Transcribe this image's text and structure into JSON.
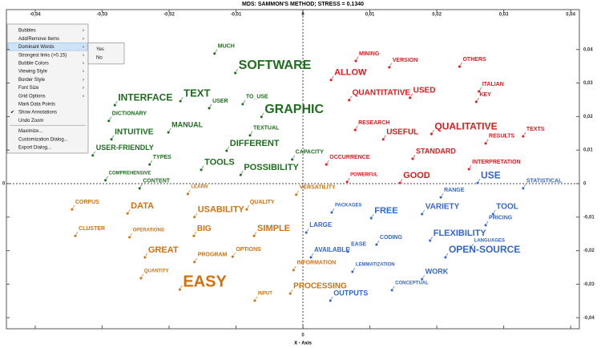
{
  "chart_data": {
    "type": "scatter",
    "title": "MDS: SAMMON'S METHOD; STRESS = 0.1340",
    "x_label": "X - Axis",
    "xlim": [
      -0.0443,
      0.0413
    ],
    "ylim": [
      -0.0433,
      0.0519
    ],
    "xticks": [
      {
        "value": -0.04,
        "label": "-0,04"
      },
      {
        "value": -0.03,
        "label": "-0,03"
      },
      {
        "value": -0.02,
        "label": "-0,02"
      },
      {
        "value": -0.01,
        "label": "-0,01"
      },
      0,
      {
        "value": 0.01,
        "label": "0,01"
      },
      {
        "value": 0.02,
        "label": "0,02"
      },
      {
        "value": 0.03,
        "label": "0,03"
      },
      {
        "value": 0.04,
        "label": "0,04"
      }
    ],
    "yticks": [
      {
        "value": 0.04,
        "label": "0,04"
      },
      {
        "value": 0.03,
        "label": "0,03"
      },
      {
        "value": 0.02,
        "label": "0,02"
      },
      {
        "value": 0.01,
        "label": "0,01"
      },
      0,
      {
        "value": -0.01,
        "label": "-0,01"
      },
      {
        "value": -0.02,
        "label": "-0,02"
      },
      {
        "value": -0.03,
        "label": "-0,03"
      },
      {
        "value": -0.04,
        "label": "-0,04"
      }
    ],
    "series": [
      {
        "color": "#1e6e1e",
        "labels": [
          "MUCH",
          "SOFTWARE",
          "INTERFACE",
          "TEXT",
          "USER",
          "TO_USE",
          "GRAPHIC",
          "DICTIONARY",
          "MANUAL",
          "TEXTUAL",
          "INTUITIVE",
          "DIFFERENT",
          "USER-FRIENDLY",
          "CAPACITY",
          "TYPES",
          "TOOLS",
          "POSSIBILITY",
          "COMPREHENSIVE",
          "CONTENT"
        ],
        "x": [
          -0.0132,
          -0.0101,
          -0.0281,
          -0.0183,
          -0.014,
          -0.009,
          -0.0062,
          -0.029,
          -0.0201,
          -0.0079,
          -0.0286,
          -0.0114,
          -0.0314,
          -0.0016,
          -0.0229,
          -0.0152,
          -0.0093,
          -0.0295,
          -0.0244
        ],
        "y": [
          0.0388,
          0.033,
          0.0234,
          0.0246,
          0.0225,
          0.0237,
          0.0199,
          0.0187,
          0.0153,
          0.0144,
          0.0132,
          0.0098,
          0.0084,
          0.0072,
          0.0057,
          0.0041,
          0.0026,
          0.001,
          -0.0014
        ],
        "sizes": [
          7,
          16,
          12,
          13,
          7,
          7,
          16,
          7,
          9,
          7,
          10,
          11,
          9,
          7,
          7,
          11,
          11,
          6,
          7
        ]
      },
      {
        "color": "#e8161b",
        "labels": [
          "MINING",
          "VERSION",
          "OTHERS",
          "ALLOW",
          "QUANTITATIVE",
          "USED",
          "ITALIAN",
          "KEY",
          "RESEARCH",
          "QUALITATIVE",
          "TEXTS",
          "USEFUL",
          "RESULTS",
          "OCCURRENCE",
          "STANDARD",
          "INTERPRETATION",
          "POWERFUL",
          "GOOD"
        ],
        "x": [
          0.0079,
          0.0129,
          0.0234,
          0.0042,
          0.0069,
          0.016,
          0.0263,
          0.0259,
          0.0078,
          0.0192,
          0.0329,
          0.012,
          0.0273,
          0.0035,
          0.0164,
          0.0248,
          0.0066,
          0.0145
        ],
        "y": [
          0.0366,
          0.0347,
          0.0349,
          0.0309,
          0.0249,
          0.0256,
          0.0275,
          0.0244,
          0.016,
          0.0148,
          0.0141,
          0.0132,
          0.012,
          0.0057,
          0.0074,
          0.0043,
          0.0005,
          0.0002
        ],
        "sizes": [
          7,
          7,
          7,
          11,
          10,
          10,
          7,
          7,
          7,
          12,
          7,
          10,
          7,
          7,
          9,
          7,
          6,
          11
        ]
      },
      {
        "color": "#d4700c",
        "labels": [
          "LEARN",
          "VERSATILITY",
          "QUALITY",
          "CORPUS",
          "DATA",
          "USABILITY",
          "CLUSTER",
          "OPERATIONS",
          "BIG",
          "SIMPLE",
          "GREAT",
          "OPTIONS",
          "PROGRAM",
          "INFORMATION",
          "QUANTITY",
          "EASY",
          "PROCESSING",
          "INPUT"
        ],
        "x": [
          -0.0172,
          -0.001,
          -0.0084,
          -0.0345,
          -0.0262,
          -0.0162,
          -0.034,
          -0.0259,
          -0.0163,
          -0.0073,
          -0.0236,
          -0.0105,
          -0.0162,
          -0.0014,
          -0.0242,
          -0.0184,
          -0.0019,
          -0.0072
        ],
        "y": [
          -0.0031,
          -0.0033,
          -0.0077,
          -0.0077,
          -0.0089,
          -0.01,
          -0.0156,
          -0.016,
          -0.0156,
          -0.0156,
          -0.022,
          -0.0218,
          -0.0234,
          -0.0258,
          -0.0282,
          -0.0316,
          -0.0328,
          -0.0349
        ],
        "sizes": [
          6,
          7,
          7,
          7,
          11,
          11,
          7,
          6,
          10,
          11,
          11,
          7,
          7,
          7,
          6,
          20,
          10,
          6
        ]
      },
      {
        "color": "#3366cc",
        "labels": [
          "USE",
          "STATISTICAL",
          "RANGE",
          "PACKAGES",
          "VARIETY",
          "TOOL",
          "FREE",
          "PRICING",
          "LARGE",
          "FLEXIBILITY",
          "CODING",
          "LANGUAGES",
          "EASE",
          "AVAILABLE",
          "OPEN-SOURCE",
          "LEMMATIZATION",
          "WORK",
          "CONCEPTUAL",
          "OUTPUTS"
        ],
        "x": [
          0.0261,
          0.0329,
          0.0206,
          0.0043,
          0.0178,
          0.0284,
          0.0102,
          0.0273,
          0.0005,
          0.019,
          0.011,
          0.0251,
          0.0067,
          0.0012,
          0.0213,
          0.0074,
          0.0178,
          0.0133,
          0.0041
        ],
        "y": [
          0.0002,
          -0.0014,
          -0.0041,
          -0.0086,
          -0.0091,
          -0.0091,
          -0.0103,
          -0.0124,
          -0.0146,
          -0.017,
          -0.0182,
          -0.0191,
          -0.0203,
          -0.022,
          -0.022,
          -0.0263,
          -0.0285,
          -0.0318,
          -0.0349
        ],
        "sizes": [
          12,
          7,
          7,
          6,
          10,
          10,
          11,
          7,
          8,
          11,
          7,
          6,
          7,
          8,
          12,
          6,
          9,
          6,
          9
        ]
      }
    ]
  },
  "context_menu": {
    "items": [
      {
        "label": "Bubbles",
        "submenu": true
      },
      {
        "label": "Add/Remove Items",
        "submenu": true
      },
      {
        "label": "Dominant Words",
        "submenu": true,
        "highlighted": true
      },
      {
        "label": "Strongest links (>0.15)",
        "submenu": true
      },
      {
        "label": "Bubble Colors",
        "submenu": true
      },
      {
        "label": "Viewing Style",
        "submenu": true
      },
      {
        "label": "Border Style",
        "submenu": true
      },
      {
        "label": "Font Size",
        "submenu": true
      },
      {
        "label": "Grid Options",
        "submenu": true
      },
      {
        "label": "Mark Data Points"
      },
      {
        "label": "Show Annotations",
        "checked": true
      },
      {
        "label": "Undo Zoom",
        "disabled": true
      },
      {
        "label": "Maximize...",
        "separator_before": true
      },
      {
        "label": "Customization Dialog..."
      },
      {
        "label": "Export Dialog..."
      }
    ],
    "submenu": [
      "Yes",
      "No"
    ]
  }
}
